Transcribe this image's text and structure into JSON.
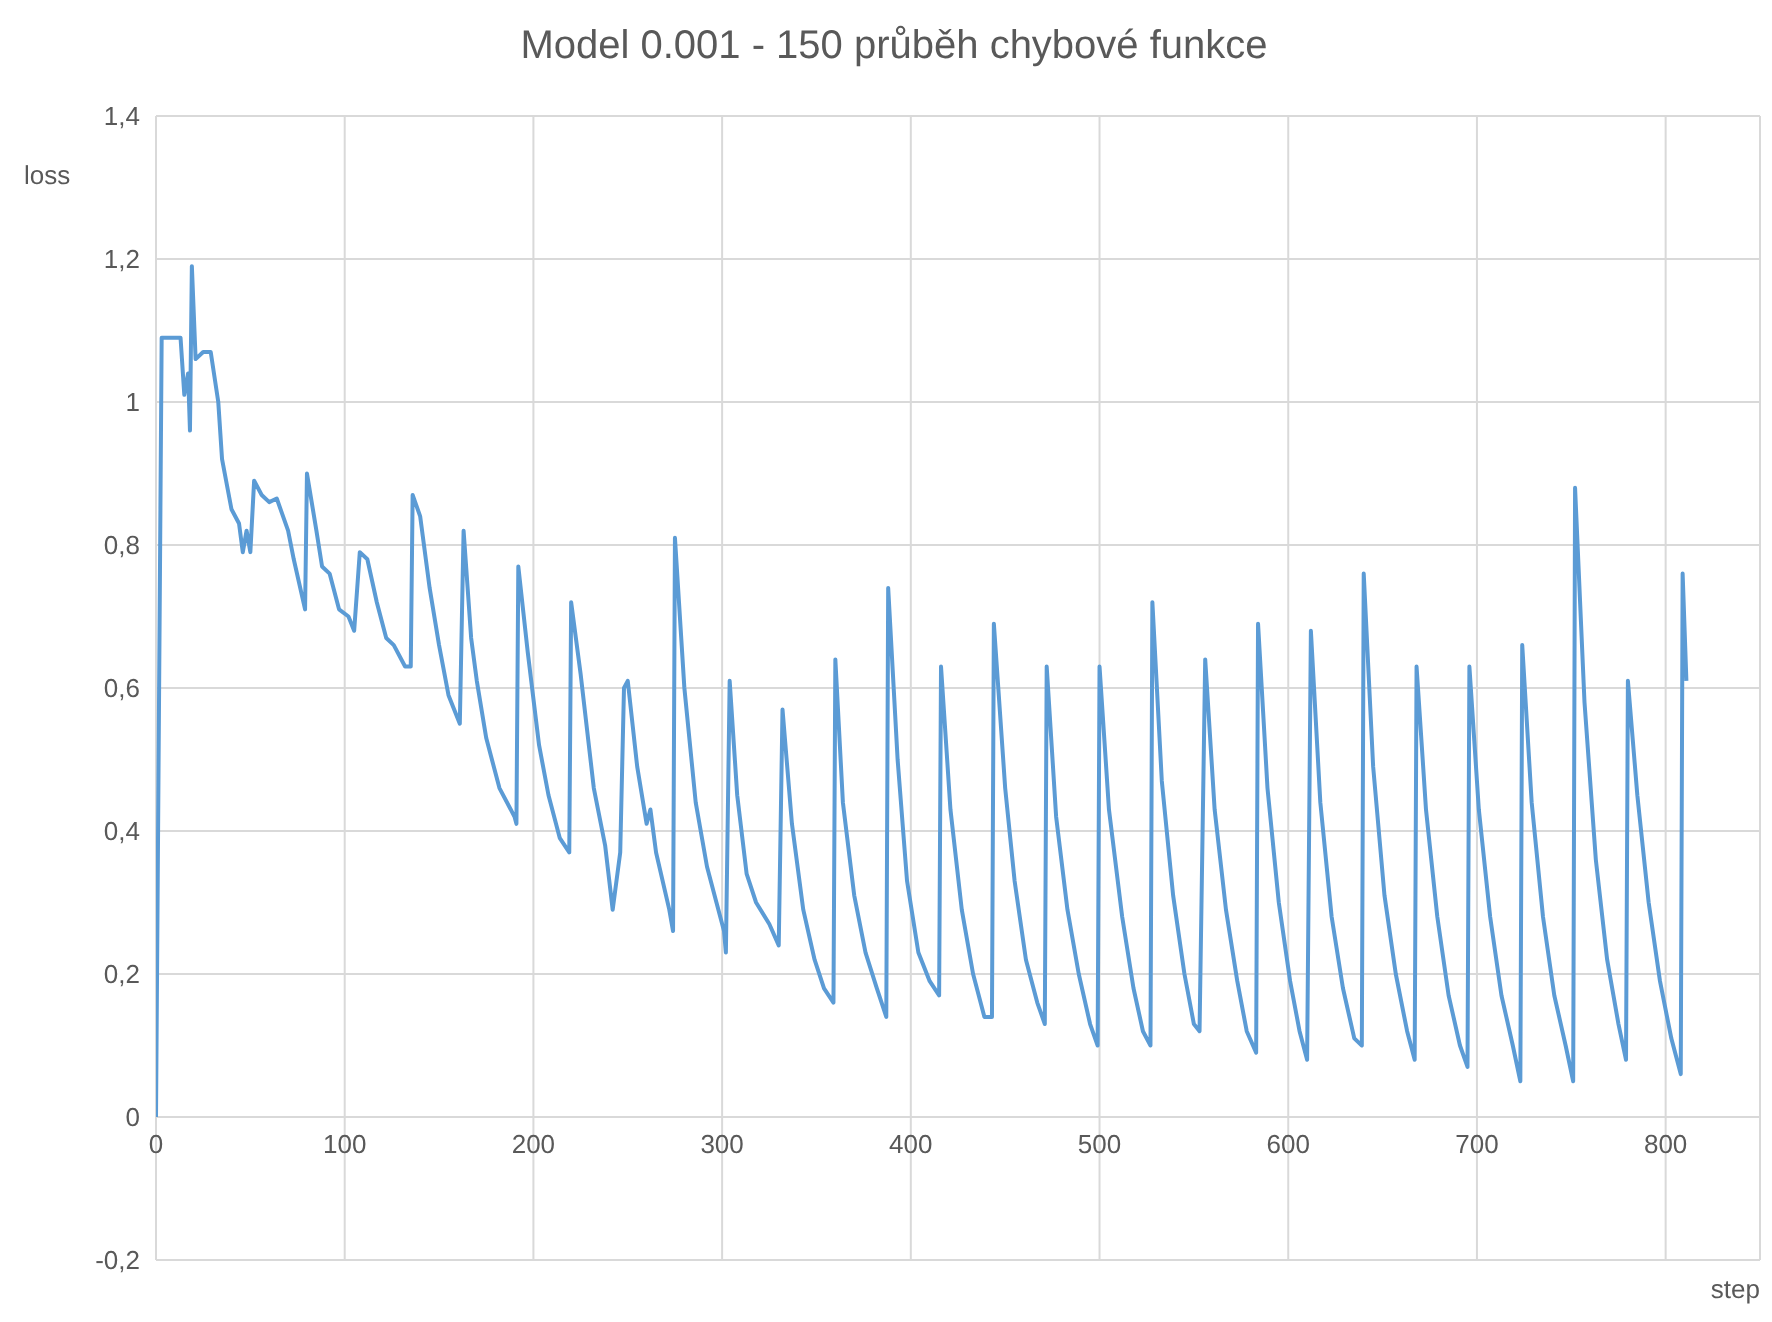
{
  "chart_data": {
    "type": "line",
    "title": "Model 0.001 - 150 průběh chybové funkce",
    "xlabel": "step",
    "ylabel": "loss",
    "grid": true,
    "marker": "none",
    "line_style": "solid",
    "xlim": [
      0,
      850
    ],
    "xticks": [
      0,
      100,
      200,
      300,
      400,
      500,
      600,
      700,
      800
    ],
    "ylim": [
      -0.2,
      1.4
    ],
    "yticks": [
      {
        "value": -0.2,
        "label": "-0,2"
      },
      0,
      {
        "value": 0.2,
        "label": "0,2"
      },
      {
        "value": 0.4,
        "label": "0,4"
      },
      {
        "value": 0.6,
        "label": "0,6"
      },
      {
        "value": 0.8,
        "label": "0,8"
      },
      1,
      {
        "value": 1.2,
        "label": "1,2"
      },
      {
        "value": 1.4,
        "label": "1,4"
      }
    ],
    "x": [
      0,
      3,
      13,
      15,
      17,
      18,
      19,
      21,
      25,
      29,
      33,
      35,
      40,
      44,
      46,
      48,
      50,
      52,
      56,
      60,
      64,
      70,
      73,
      79,
      80,
      85,
      88,
      92,
      97,
      102,
      105,
      108,
      112,
      117,
      122,
      126,
      132,
      135,
      136,
      140,
      145,
      150,
      155,
      161,
      163,
      167,
      170,
      175,
      182,
      190,
      191,
      192,
      197,
      203,
      208,
      214,
      219,
      220,
      225,
      232,
      238,
      242,
      246,
      248,
      250,
      255,
      260,
      262,
      265,
      272,
      274,
      275,
      280,
      286,
      292,
      297,
      301,
      302,
      304,
      308,
      313,
      318,
      325,
      330,
      332,
      337,
      343,
      349,
      354,
      359,
      360,
      364,
      370,
      376,
      382,
      387,
      388,
      393,
      398,
      404,
      410,
      415,
      416,
      421,
      427,
      433,
      439,
      443,
      444,
      450,
      455,
      461,
      467,
      471,
      472,
      477,
      483,
      489,
      495,
      499,
      500,
      505,
      512,
      518,
      523,
      527,
      528,
      533,
      539,
      545,
      550,
      553,
      556,
      561,
      567,
      573,
      578,
      583,
      584,
      589,
      595,
      601,
      606,
      610,
      612,
      617,
      623,
      629,
      635,
      639,
      640,
      645,
      651,
      657,
      663,
      667,
      668,
      673,
      679,
      685,
      691,
      695,
      696,
      701,
      707,
      713,
      719,
      723,
      724,
      729,
      735,
      741,
      747,
      751,
      752,
      757,
      763,
      769,
      775,
      779,
      780,
      785,
      791,
      797,
      803,
      808,
      809,
      811
    ],
    "series": [
      {
        "color": "#5b9bd5",
        "values": [
          0,
          1.09,
          1.09,
          1.01,
          1.04,
          0.96,
          1.19,
          1.06,
          1.07,
          1.07,
          1.0,
          0.92,
          0.85,
          0.83,
          0.79,
          0.82,
          0.79,
          0.89,
          0.87,
          0.86,
          0.865,
          0.82,
          0.78,
          0.71,
          0.9,
          0.82,
          0.77,
          0.76,
          0.71,
          0.7,
          0.68,
          0.79,
          0.78,
          0.72,
          0.67,
          0.66,
          0.63,
          0.63,
          0.87,
          0.84,
          0.74,
          0.66,
          0.59,
          0.55,
          0.82,
          0.67,
          0.61,
          0.53,
          0.46,
          0.42,
          0.41,
          0.77,
          0.65,
          0.52,
          0.45,
          0.39,
          0.37,
          0.72,
          0.62,
          0.46,
          0.38,
          0.29,
          0.37,
          0.6,
          0.61,
          0.49,
          0.41,
          0.43,
          0.37,
          0.29,
          0.26,
          0.81,
          0.6,
          0.44,
          0.35,
          0.3,
          0.26,
          0.23,
          0.61,
          0.45,
          0.34,
          0.3,
          0.27,
          0.24,
          0.57,
          0.41,
          0.29,
          0.22,
          0.18,
          0.16,
          0.64,
          0.44,
          0.31,
          0.23,
          0.18,
          0.14,
          0.74,
          0.5,
          0.33,
          0.23,
          0.19,
          0.17,
          0.63,
          0.43,
          0.29,
          0.2,
          0.14,
          0.14,
          0.69,
          0.46,
          0.33,
          0.22,
          0.16,
          0.13,
          0.63,
          0.42,
          0.29,
          0.2,
          0.13,
          0.1,
          0.63,
          0.43,
          0.28,
          0.18,
          0.12,
          0.1,
          0.72,
          0.47,
          0.31,
          0.2,
          0.13,
          0.12,
          0.64,
          0.43,
          0.29,
          0.19,
          0.12,
          0.09,
          0.69,
          0.46,
          0.3,
          0.19,
          0.12,
          0.08,
          0.68,
          0.44,
          0.28,
          0.18,
          0.11,
          0.1,
          0.76,
          0.49,
          0.31,
          0.2,
          0.12,
          0.08,
          0.63,
          0.43,
          0.28,
          0.17,
          0.1,
          0.07,
          0.63,
          0.43,
          0.28,
          0.17,
          0.1,
          0.05,
          0.66,
          0.44,
          0.28,
          0.17,
          0.1,
          0.05,
          0.88,
          0.58,
          0.36,
          0.22,
          0.13,
          0.08,
          0.61,
          0.45,
          0.3,
          0.19,
          0.11,
          0.06,
          0.76,
          0.61
        ]
      }
    ]
  }
}
